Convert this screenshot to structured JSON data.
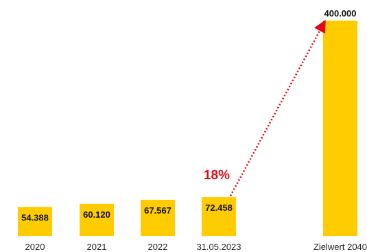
{
  "chart_data": {
    "type": "bar",
    "categories": [
      "2020",
      "2021",
      "2022",
      "31.05.2023",
      "Zielwert 2040"
    ],
    "values": [
      54388,
      60120,
      67567,
      72458,
      400000
    ],
    "value_labels": [
      "54.388",
      "60.120",
      "67.567",
      "72.458",
      "400.000"
    ],
    "title": "",
    "xlabel": "",
    "ylabel": "",
    "ylim": [
      0,
      400000
    ],
    "grid": false,
    "legend": "none",
    "annotation": {
      "text": "18%",
      "type": "dotted-arrow",
      "from_category": "31.05.2023",
      "to_category": "Zielwert 2040"
    }
  },
  "colors": {
    "bar": "#FFCC00",
    "annotation": "#E30613",
    "text": "#111111"
  }
}
